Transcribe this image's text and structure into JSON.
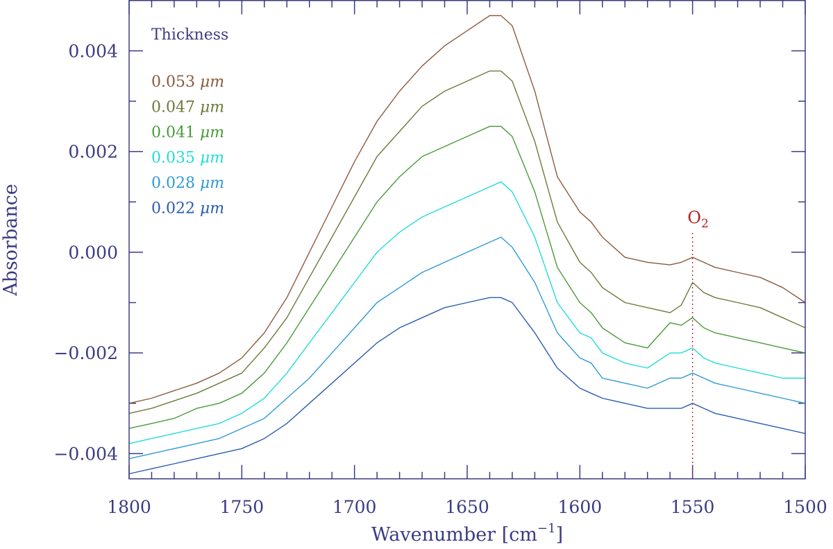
{
  "chart_data": {
    "type": "line",
    "xlabel": "Wavenumber [cm",
    "xlabel_sup": "−1",
    "xlabel_close": "]",
    "ylabel": "Absorbance",
    "xlim": [
      1800,
      1500
    ],
    "ylim": [
      -0.0045,
      0.005
    ],
    "x_reversed": true,
    "x_ticks": [
      1800,
      1750,
      1700,
      1650,
      1600,
      1550,
      1500
    ],
    "x_tick_labels": [
      "1800",
      "1750",
      "1700",
      "1650",
      "1600",
      "1550",
      "1500"
    ],
    "x_minor_step": 10,
    "y_ticks": [
      -0.004,
      -0.002,
      0.0,
      0.002,
      0.004
    ],
    "y_tick_labels": [
      "−0.004",
      "−0.002",
      "0.000",
      "0.002",
      "0.004"
    ],
    "y_minor_step": 0.001,
    "grid": false,
    "legend": {
      "title": "Thickness",
      "placement": "top-left",
      "unit": "μm"
    },
    "annotation": {
      "text": "O",
      "sub": "2",
      "x": 1550,
      "color": "#b22222"
    },
    "x": [
      1800,
      1790,
      1780,
      1770,
      1760,
      1750,
      1740,
      1730,
      1720,
      1710,
      1700,
      1690,
      1680,
      1670,
      1660,
      1650,
      1640,
      1635,
      1630,
      1620,
      1610,
      1600,
      1595,
      1590,
      1580,
      1570,
      1560,
      1555,
      1550,
      1545,
      1540,
      1530,
      1520,
      1510,
      1500
    ],
    "series": [
      {
        "name": "0.053",
        "color": "#8b5a3c",
        "values": [
          -0.003,
          -0.0029,
          -0.00275,
          -0.0026,
          -0.0024,
          -0.0021,
          -0.0016,
          -0.0009,
          0.0,
          0.0009,
          0.0018,
          0.0026,
          0.0032,
          0.0037,
          0.0041,
          0.0044,
          0.0047,
          0.0047,
          0.0045,
          0.0032,
          0.0015,
          0.0008,
          0.0006,
          0.0003,
          -0.0001,
          -0.0002,
          -0.00025,
          -0.0002,
          -0.0001,
          -0.0002,
          -0.0003,
          -0.0004,
          -0.0005,
          -0.0007,
          -0.001
        ]
      },
      {
        "name": "0.047",
        "color": "#6b7a3a",
        "values": [
          -0.0032,
          -0.0031,
          -0.00295,
          -0.0028,
          -0.0026,
          -0.0024,
          -0.0019,
          -0.0013,
          -0.0005,
          0.0003,
          0.0011,
          0.0019,
          0.0024,
          0.0029,
          0.0032,
          0.0034,
          0.0036,
          0.0036,
          0.0034,
          0.0022,
          0.0006,
          -0.0002,
          -0.0004,
          -0.0007,
          -0.001,
          -0.0011,
          -0.0012,
          -0.00105,
          -0.0006,
          -0.0008,
          -0.0009,
          -0.001,
          -0.0011,
          -0.0013,
          -0.0015
        ]
      },
      {
        "name": "0.041",
        "color": "#4a9a3a",
        "values": [
          -0.0035,
          -0.0034,
          -0.0033,
          -0.0031,
          -0.003,
          -0.0028,
          -0.0024,
          -0.0018,
          -0.0011,
          -0.0004,
          0.0003,
          0.001,
          0.0015,
          0.0019,
          0.0021,
          0.0023,
          0.0025,
          0.0025,
          0.0023,
          0.0012,
          -0.0003,
          -0.001,
          -0.0012,
          -0.0015,
          -0.0018,
          -0.0019,
          -0.0014,
          -0.00145,
          -0.0013,
          -0.0015,
          -0.0016,
          -0.0017,
          -0.0018,
          -0.0019,
          -0.002
        ]
      },
      {
        "name": "0.035",
        "color": "#22dcd8",
        "values": [
          -0.0038,
          -0.0037,
          -0.0036,
          -0.0035,
          -0.0034,
          -0.0032,
          -0.0029,
          -0.0024,
          -0.0018,
          -0.0012,
          -0.0006,
          0.0,
          0.0004,
          0.0007,
          0.0009,
          0.0011,
          0.0013,
          0.0014,
          0.0012,
          0.0003,
          -0.001,
          -0.0016,
          -0.0017,
          -0.002,
          -0.0022,
          -0.0023,
          -0.002,
          -0.002,
          -0.0019,
          -0.0021,
          -0.0022,
          -0.0023,
          -0.0024,
          -0.0025,
          -0.0025
        ]
      },
      {
        "name": "0.028",
        "color": "#2f9ad3",
        "values": [
          -0.0041,
          -0.004,
          -0.0039,
          -0.0038,
          -0.0037,
          -0.0035,
          -0.0033,
          -0.0029,
          -0.0025,
          -0.002,
          -0.0015,
          -0.001,
          -0.0007,
          -0.0004,
          -0.0002,
          0.0,
          0.0002,
          0.0003,
          0.0001,
          -0.0006,
          -0.0016,
          -0.0021,
          -0.0022,
          -0.0025,
          -0.0026,
          -0.0027,
          -0.0025,
          -0.0025,
          -0.0024,
          -0.0025,
          -0.0026,
          -0.0027,
          -0.0028,
          -0.0029,
          -0.003
        ]
      },
      {
        "name": "0.022",
        "color": "#2a5cae",
        "values": [
          -0.0044,
          -0.0043,
          -0.0042,
          -0.0041,
          -0.004,
          -0.0039,
          -0.0037,
          -0.0034,
          -0.003,
          -0.0026,
          -0.0022,
          -0.0018,
          -0.0015,
          -0.0013,
          -0.0011,
          -0.001,
          -0.0009,
          -0.0009,
          -0.001,
          -0.0016,
          -0.0023,
          -0.0027,
          -0.0028,
          -0.0029,
          -0.003,
          -0.0031,
          -0.0031,
          -0.0031,
          -0.003,
          -0.0031,
          -0.0032,
          -0.0033,
          -0.0034,
          -0.0035,
          -0.0036
        ]
      }
    ]
  }
}
